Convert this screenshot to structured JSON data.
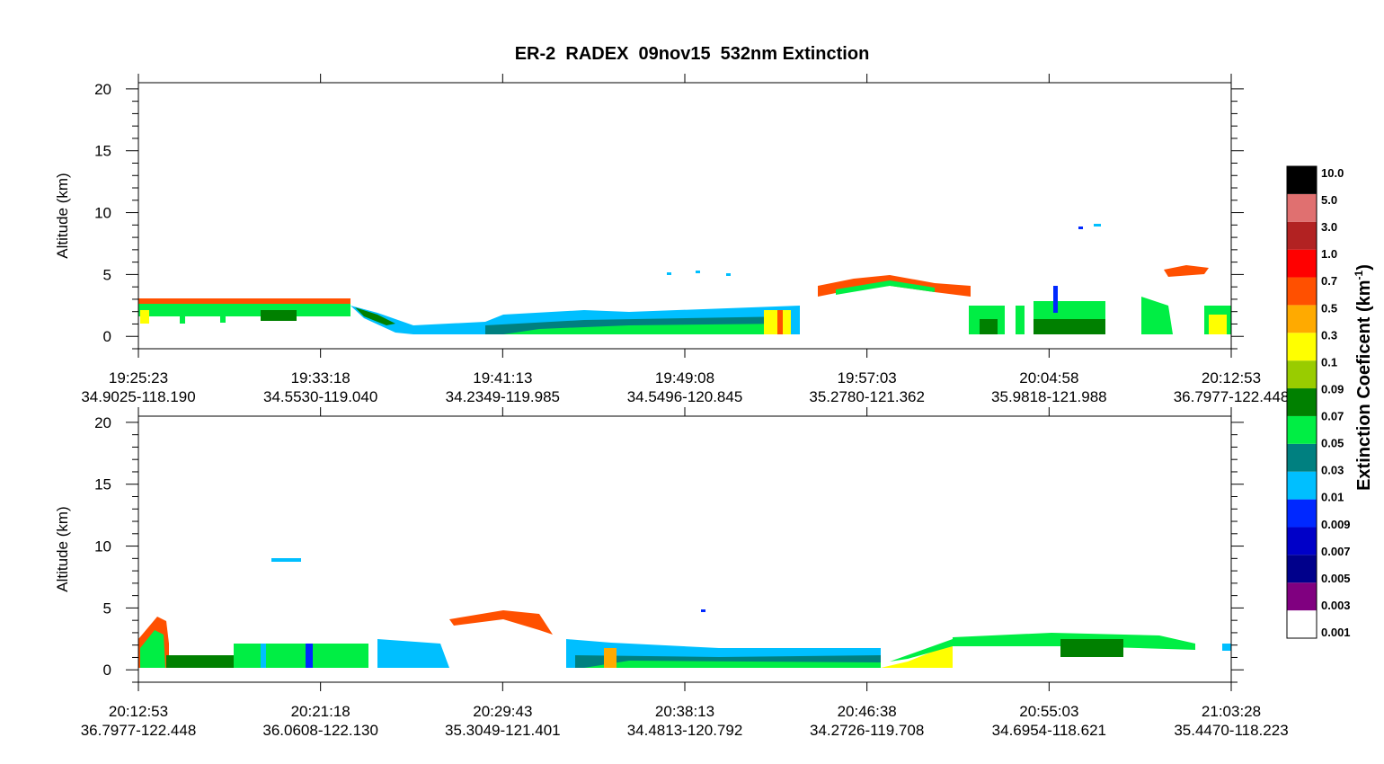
{
  "chart_data": {
    "type": "curtain",
    "title": "ER-2  RADEX  09nov15  532nm Extinction",
    "panels": [
      {
        "ylabel": "Altitude (km)",
        "ylim": [
          -1,
          20.5
        ],
        "yticks": [
          0,
          5,
          10,
          15,
          20
        ],
        "y_minor_step": 1,
        "xticks": [
          {
            "time": "19:25:23",
            "location": "34.9025-118.190"
          },
          {
            "time": "19:33:18",
            "location": "34.5530-119.040"
          },
          {
            "time": "19:41:13",
            "location": "34.2349-119.985"
          },
          {
            "time": "19:49:08",
            "location": "34.5496-120.845"
          },
          {
            "time": "19:57:03",
            "location": "35.2780-121.362"
          },
          {
            "time": "20:04:58",
            "location": "35.9818-121.988"
          },
          {
            "time": "20:12:53",
            "location": "36.7977-122.448"
          }
        ]
      },
      {
        "ylabel": "Altitude (km)",
        "ylim": [
          -1,
          20.5
        ],
        "yticks": [
          0,
          5,
          10,
          15,
          20
        ],
        "y_minor_step": 1,
        "xticks": [
          {
            "time": "20:12:53",
            "location": "36.7977-122.448"
          },
          {
            "time": "20:21:18",
            "location": "36.0608-122.130"
          },
          {
            "time": "20:29:43",
            "location": "35.3049-121.401"
          },
          {
            "time": "20:38:13",
            "location": "34.4813-120.792"
          },
          {
            "time": "20:46:38",
            "location": "34.2726-119.708"
          },
          {
            "time": "20:55:03",
            "location": "34.6954-118.621"
          },
          {
            "time": "21:03:28",
            "location": "35.4470-118.223"
          }
        ]
      }
    ],
    "colorbar": {
      "label": "Extinction Coeficent (km",
      "label_exponent": "-1",
      "label_close": ")",
      "levels": [
        0.001,
        0.003,
        0.005,
        0.007,
        0.009,
        0.01,
        0.03,
        0.05,
        0.07,
        0.09,
        0.1,
        0.3,
        0.5,
        0.7,
        {
          "value": 1,
          "label": "1.0"
        },
        {
          "value": 3,
          "label": "3.0"
        },
        {
          "value": 5,
          "label": "5.0"
        },
        {
          "value": 10,
          "label": "10.0"
        }
      ],
      "colors": [
        "#ffffff",
        "#800080",
        "#00008b",
        "#0000c8",
        "#0028ff",
        "#00bfff",
        "#008080",
        "#00ee44",
        "#008000",
        "#99cc00",
        "#ffff00",
        "#ffaa00",
        "#ff5000",
        "#ff0000",
        "#b22222",
        "#e07070",
        "#000000"
      ]
    }
  }
}
